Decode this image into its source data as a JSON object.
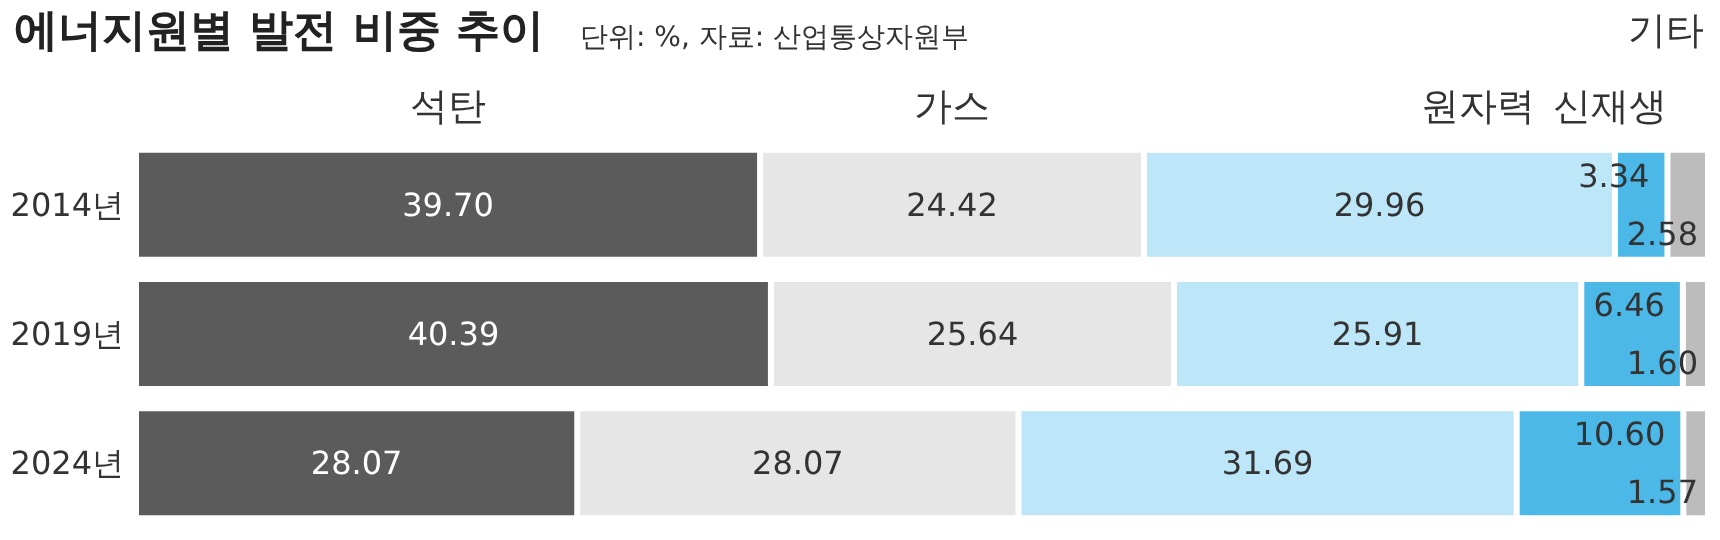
{
  "chart_data": {
    "type": "bar",
    "orientation": "horizontal",
    "stacked": true,
    "title": "에너지원별 발전 비중 추이",
    "subtitle": "단위: %, 자료: 산업통상자원부",
    "categories": [
      "2014년",
      "2019년",
      "2024년"
    ],
    "series": [
      {
        "name": "석탄",
        "color": "#5b5b5b",
        "values": [
          39.7,
          40.39,
          28.07
        ],
        "value_labels": [
          "39.70",
          "40.39",
          "28.07"
        ]
      },
      {
        "name": "가스",
        "color": "#e6e6e6",
        "values": [
          24.42,
          25.64,
          28.07
        ],
        "value_labels": [
          "24.42",
          "25.64",
          "28.07"
        ]
      },
      {
        "name": "원자력",
        "color": "#bde6f8",
        "values": [
          29.96,
          25.91,
          31.69
        ],
        "value_labels": [
          "29.96",
          "25.91",
          "31.69"
        ]
      },
      {
        "name": "신재생",
        "color": "#4bb8e8",
        "values": [
          3.34,
          6.46,
          10.6
        ],
        "value_labels": [
          "3.34",
          "6.46",
          "10.60"
        ]
      },
      {
        "name": "기타",
        "color": "#bcbcbc",
        "values": [
          2.58,
          1.6,
          1.57
        ],
        "value_labels": [
          "2.58",
          "1.60",
          "1.57"
        ]
      }
    ]
  }
}
